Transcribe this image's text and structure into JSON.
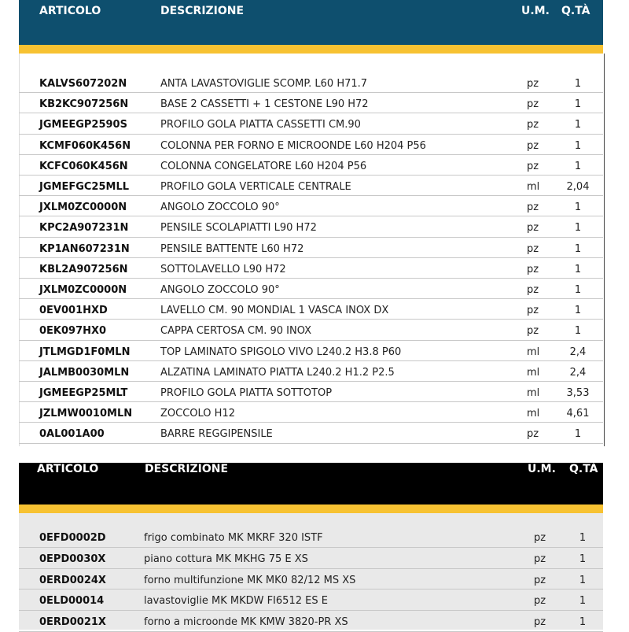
{
  "tables": [
    {
      "header": [
        "ARTICOLO",
        "DESCRIZIONE",
        "U.M.",
        "Q.TÀ"
      ],
      "rows": [
        [
          "KALVS607202N",
          "ANTA LAVASTOVIGLIE SCOMP. L60 H71.7",
          "pz",
          "1"
        ],
        [
          "KB2KC907256N",
          "BASE 2 CASSETTI + 1 CESTONE L90 H72",
          "pz",
          "1"
        ],
        [
          "JGMEEGP2590S",
          "PROFILO GOLA PIATTA CASSETTI CM.90",
          "pz",
          "1"
        ],
        [
          "KCMF060K456N",
          "COLONNA PER FORNO E MICROONDE L60 H204 P56",
          "pz",
          "1"
        ],
        [
          "KCFC060K456N",
          "COLONNA CONGELATORE L60 H204 P56",
          "pz",
          "1"
        ],
        [
          "JGMEFGC25MLL",
          "PROFILO GOLA VERTICALE CENTRALE",
          "ml",
          "2,04"
        ],
        [
          "JXLM0ZC0000N",
          "ANGOLO ZOCCOLO 90°",
          "pz",
          "1"
        ],
        [
          "KPC2A907231N",
          "PENSILE SCOLAPIATTI L90 H72",
          "pz",
          "1"
        ],
        [
          "KP1AN607231N",
          "PENSILE BATTENTE L60 H72",
          "pz",
          "1"
        ],
        [
          "KBL2A907256N",
          "SOTTOLAVELLO L90 H72",
          "pz",
          "1"
        ],
        [
          "JXLM0ZC0000N",
          "ANGOLO ZOCCOLO 90°",
          "pz",
          "1"
        ],
        [
          "0EV001HXD",
          "LAVELLO CM. 90 MONDIAL 1 VASCA INOX DX",
          "pz",
          "1"
        ],
        [
          "0EK097HX0",
          "CAPPA CERTOSA CM. 90 INOX",
          "pz",
          "1"
        ],
        [
          "JTLMGD1F0MLN",
          "TOP LAMINATO SPIGOLO VIVO L240.2 H3.8 P60",
          "ml",
          "2,4"
        ],
        [
          "JALMB0030MLN",
          "ALZATINA LAMINATO PIATTA L240.2 H1.2 P2.5",
          "ml",
          "2,4"
        ],
        [
          "JGMEEGP25MLT",
          "PROFILO GOLA PIATTA SOTTOTOP",
          "ml",
          "3,53"
        ],
        [
          "JZLMW0010MLN",
          "ZOCCOLO H12",
          "ml",
          "4,61"
        ],
        [
          "0AL001A00",
          "BARRE REGGIPENSILE",
          "pz",
          "1"
        ]
      ]
    },
    {
      "header": [
        "ARTICOLO",
        "DESCRIZIONE",
        "U.M.",
        "Q.TÀ"
      ],
      "rows": [
        [
          "0EFD0002D",
          "frigo combinato MK MKRF 320 ISTF",
          "pz",
          "1"
        ],
        [
          "0EPD0030X",
          "piano cottura MK MKHG 75 E XS",
          "pz",
          "1"
        ],
        [
          "0ERD0024X",
          "forno multifunzione MK MK0 82/12 MS XS",
          "pz",
          "1"
        ],
        [
          "0ELD00014",
          "lavastoviglie MK MKDW FI6512 ES E",
          "pz",
          "1"
        ],
        [
          "0ERD0021X",
          "forno a microonde MK KMW 3820-PR XS",
          "pz",
          "1"
        ]
      ]
    }
  ]
}
